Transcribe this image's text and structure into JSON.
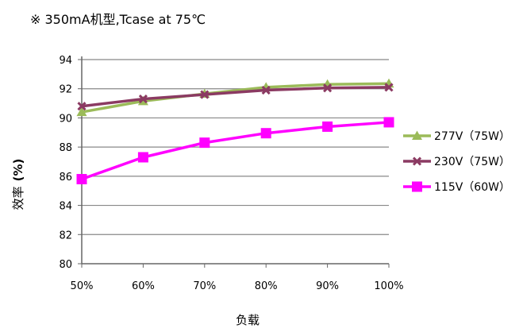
{
  "chart_data": {
    "type": "line",
    "title": "※ 350mA机型,Tcase at 75℃",
    "xlabel": "负载",
    "ylabel_cjk": "效率",
    "ylabel_unit": "(%)",
    "categories": [
      "50%",
      "60%",
      "70%",
      "80%",
      "90%",
      "100%"
    ],
    "ylim": [
      80,
      94
    ],
    "yticks": [
      80,
      82,
      84,
      86,
      88,
      90,
      92,
      94
    ],
    "grid": true,
    "legend_position": "right",
    "series": [
      {
        "name": "277V（75W）",
        "color": "#9bbb59",
        "marker": "triangle",
        "values": [
          90.4,
          91.15,
          91.65,
          92.1,
          92.3,
          92.35
        ]
      },
      {
        "name": "230V（75W）",
        "color": "#8b3a62",
        "marker": "cross",
        "values": [
          90.8,
          91.3,
          91.6,
          91.9,
          92.05,
          92.1
        ]
      },
      {
        "name": "115V（60W）",
        "color": "#ff00ff",
        "marker": "square",
        "values": [
          85.8,
          87.3,
          88.3,
          88.95,
          89.4,
          89.7
        ]
      }
    ]
  }
}
